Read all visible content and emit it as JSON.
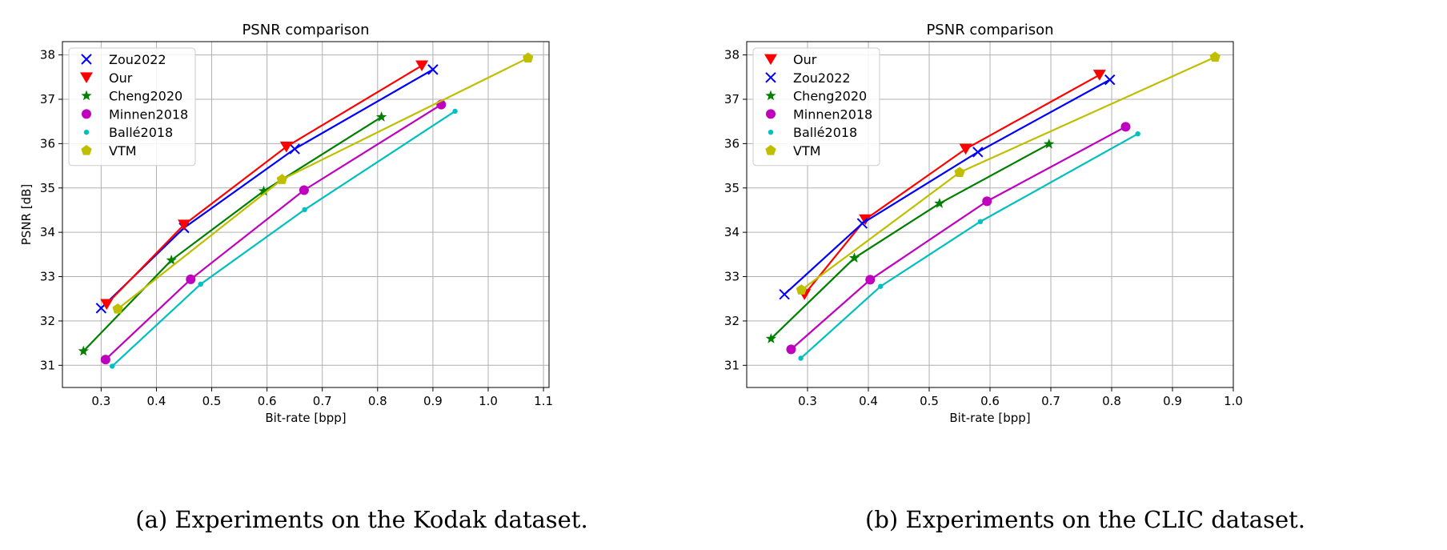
{
  "chart_data": [
    {
      "type": "line",
      "title": "PSNR comparison",
      "xlabel": "Bit-rate [bpp]",
      "ylabel": "PSNR [dB]",
      "xlim": [
        0.23,
        1.11
      ],
      "ylim": [
        30.5,
        38.3
      ],
      "xticks": [
        0.3,
        0.4,
        0.5,
        0.6,
        0.7,
        0.8,
        0.9,
        1.0,
        1.1
      ],
      "yticks": [
        31,
        32,
        33,
        34,
        35,
        36,
        37,
        38
      ],
      "grid": true,
      "legend_position": "top-left",
      "caption": "(a) Experiments on the Kodak dataset.",
      "series": [
        {
          "name": "Zou2022",
          "color": "#0000ff",
          "marker": "x",
          "x": [
            0.3,
            0.45,
            0.65,
            0.9
          ],
          "y": [
            32.29,
            34.1,
            35.88,
            37.67
          ]
        },
        {
          "name": "Our",
          "color": "#ff0000",
          "marker": "triangle-down",
          "x": [
            0.31,
            0.45,
            0.635,
            0.88
          ],
          "y": [
            32.38,
            34.17,
            35.93,
            37.76
          ]
        },
        {
          "name": "Cheng2020",
          "color": "#008000",
          "marker": "star",
          "x": [
            0.268,
            0.427,
            0.594,
            0.807
          ],
          "y": [
            31.32,
            33.37,
            34.93,
            36.6
          ]
        },
        {
          "name": "Minnen2018",
          "color": "#bf00bf",
          "marker": "circle",
          "x": [
            0.308,
            0.462,
            0.667,
            0.915
          ],
          "y": [
            31.13,
            32.94,
            34.95,
            36.88
          ]
        },
        {
          "name": "Ballé2018",
          "color": "#00bfbf",
          "marker": "dot",
          "x": [
            0.32,
            0.48,
            0.668,
            0.94
          ],
          "y": [
            30.98,
            32.83,
            34.51,
            36.73
          ]
        },
        {
          "name": "VTM",
          "color": "#bfbf00",
          "marker": "pentagon",
          "x": [
            0.33,
            0.627,
            1.072
          ],
          "y": [
            32.27,
            35.19,
            37.93
          ]
        }
      ]
    },
    {
      "type": "line",
      "title": "PSNR comparison",
      "xlabel": "Bit-rate [bpp]",
      "ylabel": "PSNR [dB]",
      "xlim": [
        0.2,
        1.0
      ],
      "ylim": [
        30.5,
        38.3
      ],
      "xticks": [
        0.3,
        0.4,
        0.5,
        0.6,
        0.7,
        0.8,
        0.9,
        1.0
      ],
      "yticks": [
        31,
        32,
        33,
        34,
        35,
        36,
        37,
        38
      ],
      "grid": true,
      "legend_position": "top-left",
      "caption": "(b) Experiments on the CLIC dataset.",
      "series": [
        {
          "name": "Our",
          "color": "#ff0000",
          "marker": "triangle-down",
          "x": [
            0.295,
            0.395,
            0.56,
            0.78
          ],
          "y": [
            32.6,
            34.29,
            35.88,
            37.55
          ]
        },
        {
          "name": "Zou2022",
          "color": "#0000ff",
          "marker": "x",
          "x": [
            0.262,
            0.39,
            0.58,
            0.797
          ],
          "y": [
            32.6,
            34.2,
            35.81,
            37.44
          ]
        },
        {
          "name": "Cheng2020",
          "color": "#008000",
          "marker": "star",
          "x": [
            0.24,
            0.377,
            0.517,
            0.697
          ],
          "y": [
            31.6,
            33.42,
            34.65,
            35.99
          ]
        },
        {
          "name": "Minnen2018",
          "color": "#bf00bf",
          "marker": "circle",
          "x": [
            0.273,
            0.403,
            0.595,
            0.823
          ],
          "y": [
            31.36,
            32.93,
            34.7,
            36.38
          ]
        },
        {
          "name": "Ballé2018",
          "color": "#00bfbf",
          "marker": "dot",
          "x": [
            0.289,
            0.42,
            0.584,
            0.843
          ],
          "y": [
            31.16,
            32.78,
            34.24,
            36.22
          ]
        },
        {
          "name": "VTM",
          "color": "#bfbf00",
          "marker": "pentagon",
          "x": [
            0.29,
            0.55,
            0.97
          ],
          "y": [
            32.7,
            35.35,
            37.95
          ]
        }
      ]
    }
  ]
}
